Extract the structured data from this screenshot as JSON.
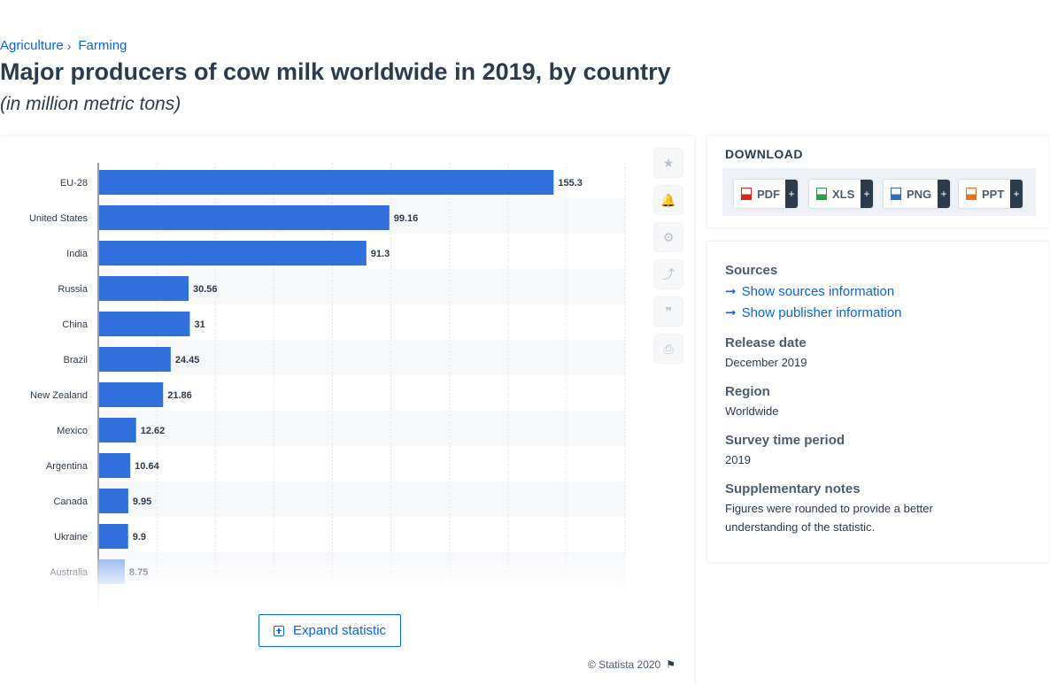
{
  "breadcrumb": {
    "items": [
      "Agriculture",
      "Farming"
    ],
    "separator": "›"
  },
  "title": "Major producers of cow milk worldwide in 2019, by country",
  "subtitle": "(in million metric tons)",
  "chart_data": {
    "type": "bar",
    "orientation": "horizontal",
    "categories": [
      "EU-28",
      "United States",
      "India",
      "Russia",
      "China",
      "Brazil",
      "New Zealand",
      "Mexico",
      "Argentina",
      "Canada",
      "Ukraine",
      "Australia"
    ],
    "values": [
      155.3,
      99.16,
      91.3,
      30.56,
      31,
      24.45,
      21.86,
      12.62,
      10.64,
      9.95,
      9.9,
      8.75
    ],
    "xlim": [
      0,
      180
    ],
    "grid": true,
    "bar_color": "#3071de",
    "data_labels": true,
    "truncated": true
  },
  "tools": {
    "icons": [
      "star-icon",
      "bell-icon",
      "gear-icon",
      "share-icon",
      "quote-icon",
      "print-icon"
    ]
  },
  "expand_label": "Expand statistic",
  "copyright": "© Statista 2020",
  "download": {
    "title": "DOWNLOAD",
    "buttons": [
      {
        "label": "PDF",
        "color": "#d9261c"
      },
      {
        "label": "XLS",
        "color": "#2e9e48"
      },
      {
        "label": "PNG",
        "color": "#2f6fbf"
      },
      {
        "label": "PPT",
        "color": "#e8731c"
      }
    ],
    "plus": "+"
  },
  "info": {
    "sources_heading": "Sources",
    "show_sources": "Show sources information",
    "show_publisher": "Show publisher information",
    "release_heading": "Release date",
    "release_value": "December 2019",
    "region_heading": "Region",
    "region_value": "Worldwide",
    "survey_heading": "Survey time period",
    "survey_value": "2019",
    "notes_heading": "Supplementary notes",
    "notes_value": "Figures were rounded to provide a better understanding of the statistic."
  }
}
